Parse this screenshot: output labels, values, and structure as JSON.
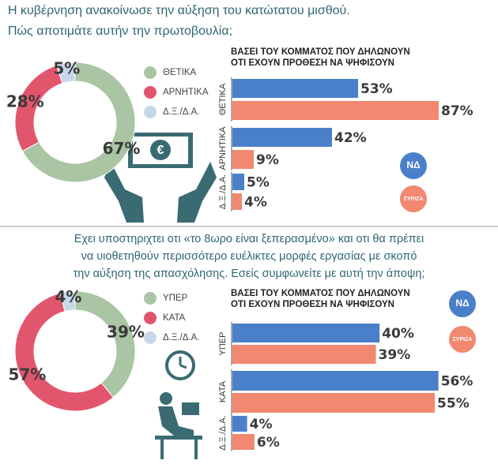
{
  "chart_data": [
    {
      "type": "donut",
      "title": [
        "Η κυβέρνηση ανακοίνωσε την αύξηση του κατώτατου μισθού.",
        "Πώς αποτιμάτε αυτήν την πρωτοβουλία;"
      ],
      "categories": [
        "ΘΕΤΙΚΑ",
        "ΑΡΝΗΤΙΚΑ",
        "Δ.Ξ./Δ.Α."
      ],
      "values": [
        67,
        28,
        5
      ],
      "value_labels": [
        "67%",
        "28%",
        "5%"
      ],
      "colors": [
        "#a9c5a3",
        "#e2566d",
        "#c7d7ea"
      ]
    },
    {
      "type": "bar",
      "title": [
        "ΒΑΣΕΙ ΤΟΥ ΚΟΜΜΑΤΟΣ ΠΟΥ ΔΗΛΩΝΟΥΝ",
        "ΟΤΙ ΕΧΟΥΝ ΠΡΟΘΕΣΗ ΝΑ ΨΗΦΙΣΟΥΝ"
      ],
      "categories": [
        "ΘΕΤΙΚΑ",
        "ΑΡΝΗΤΙΚΑ",
        "Δ.Ξ./Δ.Α."
      ],
      "xlim": [
        0,
        90
      ],
      "series": [
        {
          "name": "ΝΔ",
          "color": "#4a80c9",
          "values": [
            53,
            42,
            5
          ],
          "value_labels": [
            "53%",
            "42%",
            "5%"
          ]
        },
        {
          "name": "ΣΥΡΙΖΑ",
          "color": "#f1886f",
          "values": [
            87,
            9,
            4
          ],
          "value_labels": [
            "87%",
            "9%",
            "4%"
          ]
        }
      ]
    },
    {
      "type": "donut",
      "title": [
        "Εχει υποστηριχτει οτι «το 8ωρο είναι ξεπερασμένο» και οτι θα πρέπει",
        "να υιοθετηθούν περισσότερο ευέλικτες μορφές εργασίας με σκοπό",
        "την αύξηση της απασχόλησης. Εσείς συμφωνείτε με αυτή την άποψη;"
      ],
      "categories": [
        "ΥΠΕΡ",
        "ΚΑΤΑ",
        "Δ.Ξ./Δ.Α."
      ],
      "values": [
        39,
        57,
        4
      ],
      "value_labels": [
        "39%",
        "57%",
        "4%"
      ],
      "colors": [
        "#a9c5a3",
        "#e2566d",
        "#c7d7ea"
      ]
    },
    {
      "type": "bar",
      "title": [
        "ΒΑΣΕΙ ΤΟΥ ΚΟΜΜΑΤΟΣ ΠΟΥ ΔΗΛΩΝΟΥΝ",
        "ΟΤΙ ΕΧΟΥΝ ΠΡΟΘΕΣΗ ΝΑ ΨΗΦΙΣΟΥΝ"
      ],
      "categories": [
        "ΥΠΕΡ",
        "ΚΑΤΑ",
        "Δ.Ξ./Δ.Α."
      ],
      "xlim": [
        0,
        58
      ],
      "series": [
        {
          "name": "ΝΔ",
          "color": "#4a80c9",
          "values": [
            40,
            56,
            4
          ],
          "value_labels": [
            "40%",
            "56%",
            "4%"
          ]
        },
        {
          "name": "ΣΥΡΙΖΑ",
          "color": "#f1886f",
          "values": [
            39,
            55,
            6
          ],
          "value_labels": [
            "39%",
            "55%",
            "6%"
          ]
        }
      ]
    }
  ]
}
